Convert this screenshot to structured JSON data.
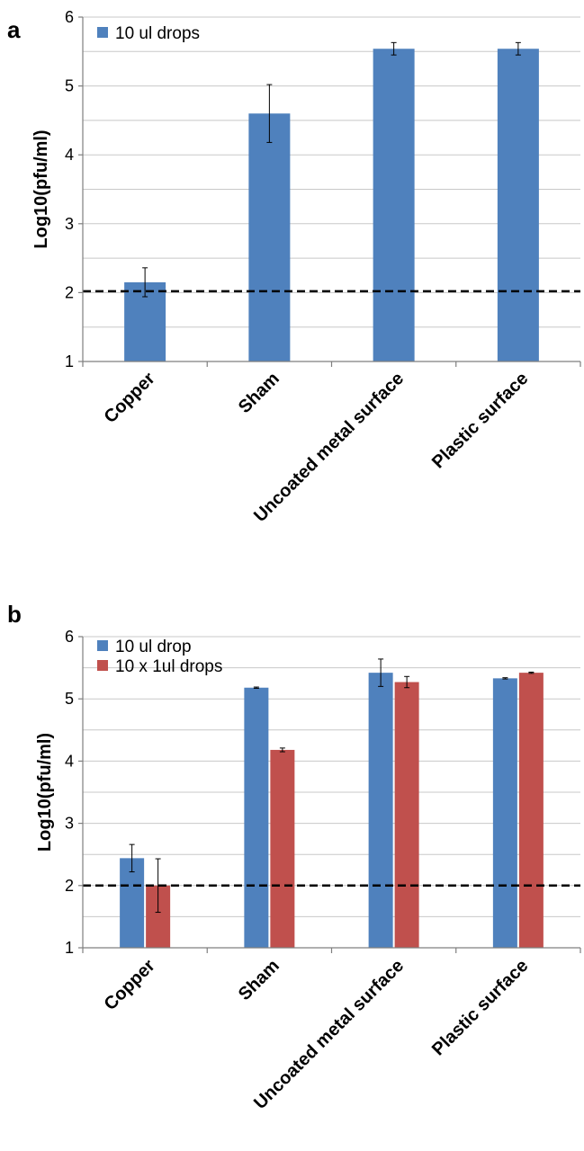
{
  "chart_data": [
    {
      "type": "bar",
      "panel": "a",
      "categories": [
        "Copper",
        "Sham",
        "Uncoated metal surface",
        "Plastic surface"
      ],
      "series": [
        {
          "name": "10 ul drops",
          "color": "#4f81bd",
          "values": [
            2.15,
            4.6,
            5.54,
            5.54
          ],
          "errors": [
            0.21,
            0.42,
            0.09,
            0.09
          ]
        }
      ],
      "ylabel": "Log10(pfu/ml)",
      "ylim": [
        1,
        6
      ],
      "yticks": [
        "1",
        "2",
        "3",
        "4",
        "5",
        "6"
      ],
      "threshold": 2.02,
      "grid": true,
      "legend": "top-left"
    },
    {
      "type": "bar",
      "panel": "b",
      "categories": [
        "Copper",
        "Sham",
        "Uncoated metal surface",
        "Plastic surface"
      ],
      "series": [
        {
          "name": "10 ul drop",
          "color": "#4f81bd",
          "values": [
            2.44,
            5.18,
            5.42,
            5.33
          ],
          "errors": [
            0.22,
            0.01,
            0.22,
            0.01
          ]
        },
        {
          "name": "10 x 1ul drops",
          "color": "#c0504d",
          "values": [
            2.0,
            4.18,
            5.27,
            5.42
          ],
          "errors": [
            0.43,
            0.03,
            0.09,
            0.01
          ]
        }
      ],
      "ylabel": "Log10(pfu/ml)",
      "ylim": [
        1,
        6
      ],
      "yticks": [
        "1",
        "2",
        "3",
        "4",
        "5",
        "6"
      ],
      "threshold": 2.0,
      "grid": true,
      "legend": "top-left"
    }
  ]
}
